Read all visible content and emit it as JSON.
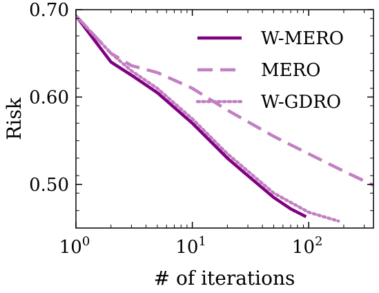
{
  "chart_data": {
    "type": "line",
    "title": "",
    "xlabel": "# of iterations",
    "ylabel": "Risk",
    "xscale": "log",
    "xlim": [
      1,
      360
    ],
    "ylim": [
      0.45,
      0.7
    ],
    "grid": false,
    "legend_position": "top-right",
    "x_ticks": [
      {
        "value": 1,
        "base": "10",
        "exp": "0"
      },
      {
        "value": 10,
        "base": "10",
        "exp": "1"
      },
      {
        "value": 100,
        "base": "10",
        "exp": "2"
      }
    ],
    "y_ticks": [
      {
        "value": 0.5,
        "label": "0.50"
      },
      {
        "value": 0.6,
        "label": "0.60"
      },
      {
        "value": 0.7,
        "label": "0.70"
      }
    ],
    "series": [
      {
        "name": "W-MERO",
        "color": "#800080",
        "style": "solid",
        "points": [
          [
            1,
            0.693
          ],
          [
            2,
            0.64
          ],
          [
            3,
            0.625
          ],
          [
            5,
            0.605
          ],
          [
            10,
            0.57
          ],
          [
            20,
            0.53
          ],
          [
            30,
            0.51
          ],
          [
            50,
            0.485
          ],
          [
            70,
            0.472
          ],
          [
            95,
            0.463
          ]
        ]
      },
      {
        "name": "MERO",
        "color": "#c27fc2",
        "style": "dashed",
        "points": [
          [
            1,
            0.693
          ],
          [
            2,
            0.65
          ],
          [
            3,
            0.636
          ],
          [
            5,
            0.628
          ],
          [
            10,
            0.61
          ],
          [
            20,
            0.585
          ],
          [
            50,
            0.555
          ],
          [
            100,
            0.535
          ],
          [
            200,
            0.515
          ],
          [
            360,
            0.499
          ]
        ]
      },
      {
        "name": "W-GDRO",
        "color": "#c27fc2",
        "style": "dotted",
        "points": [
          [
            1,
            0.693
          ],
          [
            2,
            0.65
          ],
          [
            3,
            0.63
          ],
          [
            5,
            0.61
          ],
          [
            10,
            0.575
          ],
          [
            20,
            0.535
          ],
          [
            50,
            0.49
          ],
          [
            100,
            0.468
          ],
          [
            180,
            0.458
          ]
        ]
      }
    ]
  }
}
